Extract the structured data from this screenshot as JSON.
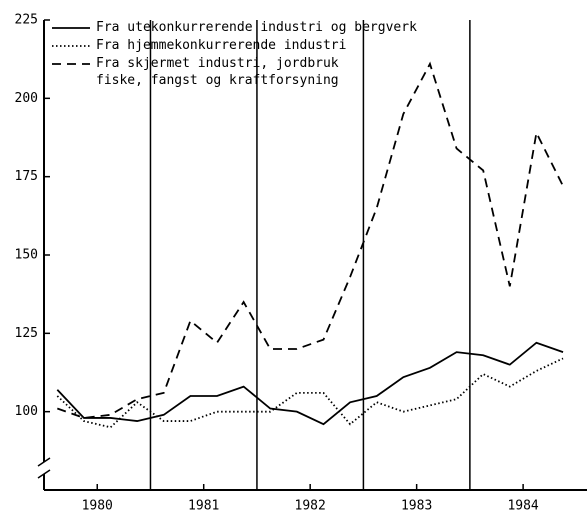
{
  "chart_data": {
    "type": "line",
    "x": [
      1980.125,
      1980.375,
      1980.625,
      1980.875,
      1981.125,
      1981.375,
      1981.625,
      1981.875,
      1982.125,
      1982.375,
      1982.625,
      1982.875,
      1983.125,
      1983.375,
      1983.625,
      1983.875,
      1984.125,
      1984.375,
      1984.625,
      1984.875
    ],
    "series": [
      {
        "name": "Fra utekonkurrerende industri og bergverk",
        "color": "#000000",
        "dash": "none",
        "values": [
          107,
          98,
          98,
          97,
          99,
          105,
          105,
          108,
          101,
          100,
          96,
          103,
          105,
          111,
          114,
          119,
          118,
          115,
          122,
          119
        ]
      },
      {
        "name": "Fra hjemmekonkurrerende industri",
        "color": "#000000",
        "dash": "1.5 2.5",
        "values": [
          105,
          97,
          95,
          103,
          97,
          97,
          100,
          100,
          100,
          106,
          106,
          96,
          103,
          100,
          102,
          104,
          112,
          108,
          113,
          117
        ]
      },
      {
        "name": "Fra skjermet industri, jordbruk\nfiske, fangst og kraftforsyning",
        "color": "#000000",
        "dash": "9 6",
        "values": [
          101,
          98,
          99,
          104,
          106,
          129,
          122,
          135,
          120,
          120,
          123,
          143,
          165,
          195,
          211,
          184,
          177,
          140,
          189,
          172
        ]
      }
    ],
    "xlim": [
      1980,
      1985.1
    ],
    "xticks": [
      {
        "value": 1980.5,
        "label": "1980"
      },
      {
        "value": 1981.5,
        "label": "1981"
      },
      {
        "value": 1982.5,
        "label": "1982"
      },
      {
        "value": 1983.5,
        "label": "1983"
      },
      {
        "value": 1984.5,
        "label": "1984"
      }
    ],
    "vlines": [
      1981,
      1982,
      1983,
      1984
    ],
    "ylim": [
      75,
      225
    ],
    "yticks": [
      100,
      125,
      150,
      175,
      200,
      225
    ],
    "legend": "upper left"
  }
}
